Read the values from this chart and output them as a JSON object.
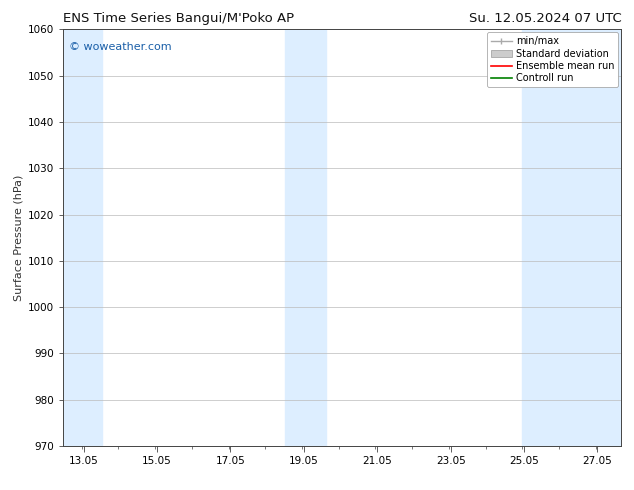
{
  "title_left": "ENS Time Series Bangui/M'Poko AP",
  "title_right": "Su. 12.05.2024 07 UTC",
  "ylabel": "Surface Pressure (hPa)",
  "ylim": [
    970,
    1060
  ],
  "yticks": [
    970,
    980,
    990,
    1000,
    1010,
    1020,
    1030,
    1040,
    1050,
    1060
  ],
  "xlim_left": 12.5,
  "xlim_right": 27.7,
  "xtick_labels": [
    "13.05",
    "15.05",
    "17.05",
    "19.05",
    "21.05",
    "23.05",
    "25.05",
    "27.05"
  ],
  "xtick_positions": [
    13.05,
    15.05,
    17.05,
    19.05,
    21.05,
    23.05,
    25.05,
    27.05
  ],
  "background_color": "#ffffff",
  "plot_bg_color": "#ffffff",
  "shaded_bands": [
    {
      "x_start": 12.5,
      "x_end": 13.55,
      "color": "#ddeeff"
    },
    {
      "x_start": 18.55,
      "x_end": 19.65,
      "color": "#ddeeff"
    },
    {
      "x_start": 25.0,
      "x_end": 27.7,
      "color": "#ddeeff"
    }
  ],
  "watermark_text": "© woweather.com",
  "watermark_color": "#1a5fa8",
  "legend_entries": [
    {
      "label": "min/max",
      "color": "#aaaaaa",
      "style": "minmax"
    },
    {
      "label": "Standard deviation",
      "color": "#cccccc",
      "style": "band"
    },
    {
      "label": "Ensemble mean run",
      "color": "#ff0000",
      "style": "line"
    },
    {
      "label": "Controll run",
      "color": "#008000",
      "style": "line"
    }
  ],
  "title_fontsize": 9.5,
  "tick_fontsize": 7.5,
  "ylabel_fontsize": 8,
  "watermark_fontsize": 8,
  "legend_fontsize": 7,
  "grid_color": "#bbbbbb",
  "spine_color": "#444444"
}
